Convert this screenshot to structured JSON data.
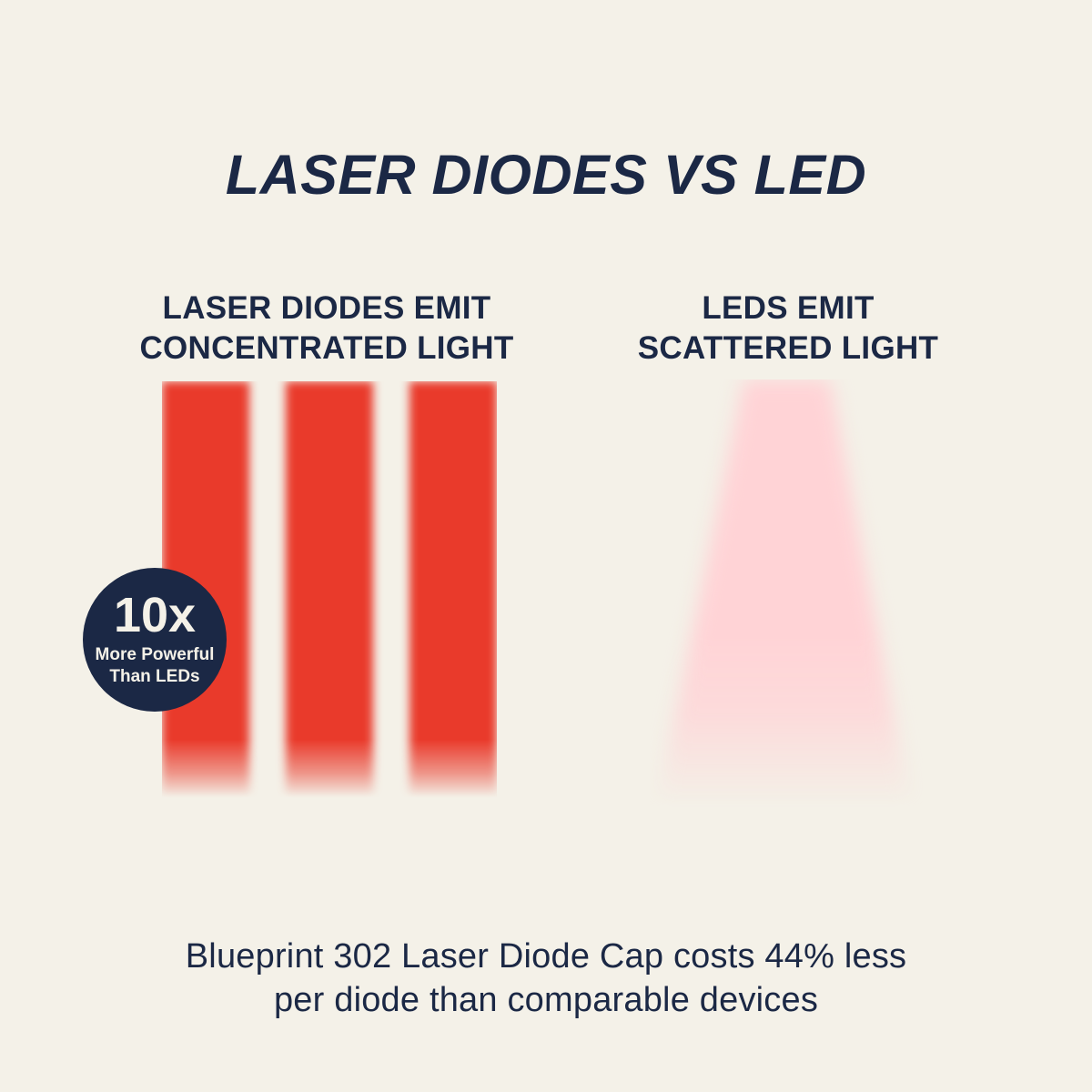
{
  "colors": {
    "background": "#f4f1e8",
    "navy": "#1b2845",
    "laser_red": "#e93a2b",
    "led_pink": "#ffd3d6",
    "badge_text": "#f4f1e8"
  },
  "title": "LASER DIODES VS LED",
  "left_panel": {
    "heading_line1": "LASER DIODES EMIT",
    "heading_line2": "CONCENTRATED LIGHT",
    "bars_count": 3
  },
  "right_panel": {
    "heading_line1": "LEDS EMIT",
    "heading_line2": "SCATTERED LIGHT"
  },
  "badge": {
    "value": "10x",
    "label_line1": "More Powerful",
    "label_line2": "Than LEDs"
  },
  "caption": {
    "line1": "Blueprint 302 Laser Diode Cap costs 44% less",
    "line2": "per diode than comparable devices"
  }
}
